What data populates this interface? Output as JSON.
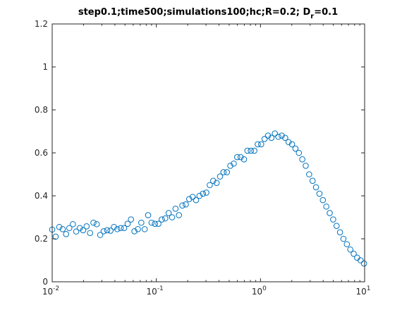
{
  "chart_data": {
    "type": "scatter",
    "title": "step0.1;time500;simulations100;hc;R=0.2; D",
    "title_subscript": "r",
    "title_suffix": "=0.1",
    "xlabel": "",
    "ylabel": "",
    "xscale": "log",
    "xlim": [
      0.01,
      10
    ],
    "ylim": [
      0,
      1.2
    ],
    "grid": false,
    "legend": "none",
    "marker": "circle-open",
    "marker_color": "#0072bd",
    "x_ticks": [
      {
        "value": 0.01,
        "base": "10",
        "exp": "-2"
      },
      {
        "value": 0.1,
        "base": "10",
        "exp": "-1"
      },
      {
        "value": 1,
        "base": "10",
        "exp": "0"
      },
      {
        "value": 10,
        "base": "10",
        "exp": "1"
      }
    ],
    "y_ticks": [
      {
        "value": 0,
        "label": "0"
      },
      {
        "value": 0.2,
        "label": "0.2"
      },
      {
        "value": 0.4,
        "label": "0.4"
      },
      {
        "value": 0.6,
        "label": "0.6"
      },
      {
        "value": 0.8,
        "label": "0.8"
      },
      {
        "value": 1.0,
        "label": "1"
      },
      {
        "value": 1.2,
        "label": "1.2"
      }
    ],
    "series": [
      {
        "x": [
          0.01,
          0.0108,
          0.0117,
          0.0126,
          0.0136,
          0.0146,
          0.0158,
          0.017,
          0.0184,
          0.0198,
          0.0214,
          0.0231,
          0.0249,
          0.0268,
          0.0289,
          0.0312,
          0.0337,
          0.0363,
          0.0392,
          0.0422,
          0.0455,
          0.0491,
          0.053,
          0.0571,
          0.0616,
          0.0665,
          0.0717,
          0.0773,
          0.0834,
          0.09,
          0.097,
          0.1047,
          0.1129,
          0.1218,
          0.1313,
          0.1417,
          0.1528,
          0.1648,
          0.1778,
          0.1918,
          0.2069,
          0.2231,
          0.2407,
          0.2596,
          0.2801,
          0.3021,
          0.3259,
          0.3516,
          0.3792,
          0.4091,
          0.4413,
          0.476,
          0.5135,
          0.5539,
          0.5975,
          0.6445,
          0.6952,
          0.75,
          0.809,
          0.8727,
          0.9414,
          1.0155,
          1.0955,
          1.1817,
          1.2748,
          1.3751,
          1.4834,
          1.6002,
          1.7262,
          1.8621,
          2.0087,
          2.1668,
          2.3374,
          2.5215,
          2.72,
          2.9341,
          3.1652,
          3.4144,
          3.6832,
          3.9732,
          4.2861,
          4.6235,
          4.9875,
          5.3802,
          5.8038,
          6.2608,
          6.7537,
          7.2854,
          7.859,
          8.4778,
          9.1453,
          9.8654
        ],
        "y": [
          0.243,
          0.21,
          0.255,
          0.245,
          0.222,
          0.25,
          0.268,
          0.234,
          0.25,
          0.24,
          0.258,
          0.227,
          0.275,
          0.268,
          0.218,
          0.235,
          0.24,
          0.238,
          0.255,
          0.245,
          0.25,
          0.25,
          0.27,
          0.29,
          0.235,
          0.245,
          0.275,
          0.245,
          0.31,
          0.275,
          0.27,
          0.27,
          0.29,
          0.295,
          0.32,
          0.3,
          0.34,
          0.31,
          0.355,
          0.36,
          0.385,
          0.395,
          0.38,
          0.4,
          0.41,
          0.415,
          0.45,
          0.47,
          0.46,
          0.49,
          0.51,
          0.51,
          0.54,
          0.55,
          0.58,
          0.58,
          0.57,
          0.61,
          0.61,
          0.61,
          0.64,
          0.64,
          0.665,
          0.68,
          0.67,
          0.69,
          0.675,
          0.68,
          0.67,
          0.65,
          0.64,
          0.62,
          0.6,
          0.57,
          0.54,
          0.5,
          0.47,
          0.44,
          0.41,
          0.38,
          0.35,
          0.32,
          0.29,
          0.26,
          0.23,
          0.2,
          0.175,
          0.15,
          0.13,
          0.112,
          0.1,
          0.085
        ]
      }
    ]
  }
}
